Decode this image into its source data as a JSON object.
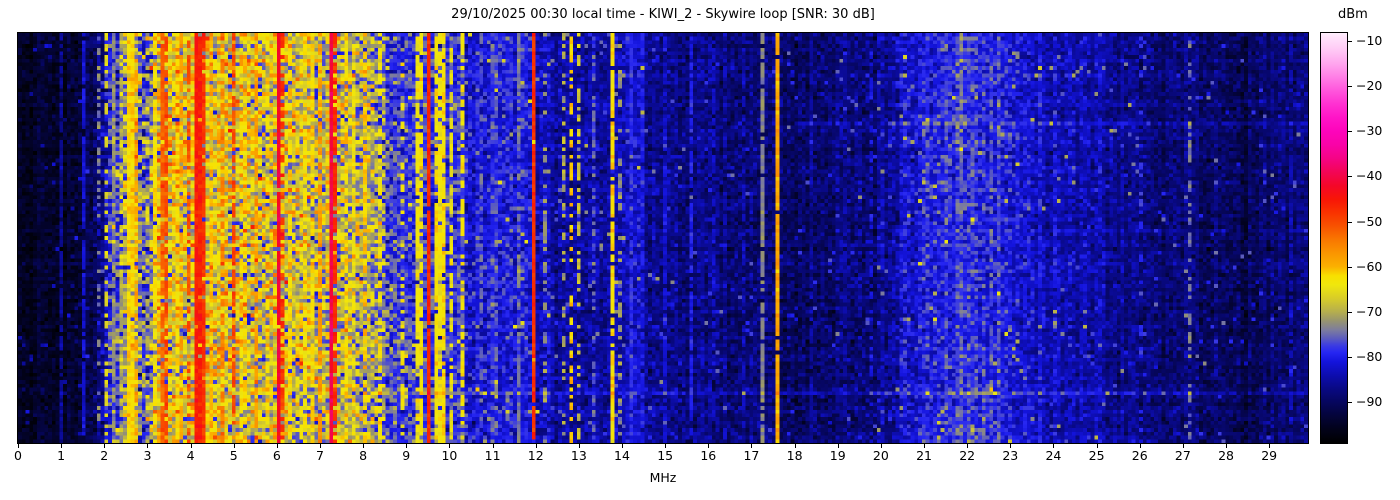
{
  "title": "29/10/2025 00:30 local time - KIWI_2 - Skywire loop [SNR: 30 dB]",
  "axes": {
    "xlabel": "MHz",
    "x_ticks": [
      0,
      1,
      2,
      3,
      4,
      5,
      6,
      7,
      8,
      9,
      10,
      11,
      12,
      13,
      14,
      15,
      16,
      17,
      18,
      19,
      20,
      21,
      22,
      23,
      24,
      25,
      26,
      27,
      28,
      29
    ],
    "colorbar_label": "dBm",
    "colorbar_ticks": [
      -10,
      -20,
      -30,
      -40,
      -50,
      -60,
      -70,
      -80,
      -90
    ]
  },
  "chart_data": {
    "type": "heatmap",
    "title": "29/10/2025 00:30 local time - KIWI_2 - Skywire loop [SNR: 30 dB]",
    "xlabel": "MHz",
    "value_label": "dBm",
    "x_range": [
      0,
      29.9
    ],
    "value_range": [
      -99.1,
      -8.2
    ],
    "cols": 344,
    "rows": 111,
    "grid": false,
    "colormap": [
      [
        -99.1,
        "#000000"
      ],
      [
        -96,
        "#02021a"
      ],
      [
        -93,
        "#04043a"
      ],
      [
        -90,
        "#06065e"
      ],
      [
        -87,
        "#090984"
      ],
      [
        -84,
        "#0d0db0"
      ],
      [
        -81,
        "#1414dd"
      ],
      [
        -79,
        "#2626f2"
      ],
      [
        -77.5,
        "#3b3be2"
      ],
      [
        -76,
        "#5a5ac0"
      ],
      [
        -74,
        "#7d7d9d"
      ],
      [
        -72,
        "#97946f"
      ],
      [
        -70,
        "#b5ae4e"
      ],
      [
        -67,
        "#d8cd28"
      ],
      [
        -64,
        "#f0e70c"
      ],
      [
        -62,
        "#f8e000"
      ],
      [
        -60,
        "#fbb000"
      ],
      [
        -57,
        "#fa9500"
      ],
      [
        -54,
        "#f97700"
      ],
      [
        -51,
        "#f85200"
      ],
      [
        -48,
        "#f93200"
      ],
      [
        -45,
        "#f81507"
      ],
      [
        -42,
        "#f40729"
      ],
      [
        -39,
        "#f30556"
      ],
      [
        -36,
        "#f50485"
      ],
      [
        -33,
        "#f903a7"
      ],
      [
        -30,
        "#fd04bb"
      ],
      [
        -27,
        "#ff14c7"
      ],
      [
        -24,
        "#ff30d1"
      ],
      [
        -21,
        "#ff55dc"
      ],
      [
        -18,
        "#ff7ee6"
      ],
      [
        -15,
        "#ffa5ee"
      ],
      [
        -12,
        "#ffc8f5"
      ],
      [
        -9,
        "#ffe4fb"
      ],
      [
        -8.2,
        "#fff0fd"
      ]
    ],
    "noise_floor": [
      [
        0,
        -95
      ],
      [
        1.4,
        -94
      ],
      [
        1.7,
        -91
      ],
      [
        2.0,
        -84
      ],
      [
        2.15,
        -78
      ],
      [
        2.3,
        -76
      ],
      [
        2.5,
        -70
      ],
      [
        2.78,
        -70
      ],
      [
        2.9,
        -76
      ],
      [
        3.05,
        -74
      ],
      [
        3.15,
        -68
      ],
      [
        3.3,
        -66
      ],
      [
        3.6,
        -67
      ],
      [
        4.0,
        -66
      ],
      [
        4.5,
        -66
      ],
      [
        5.2,
        -67
      ],
      [
        5.8,
        -66
      ],
      [
        6.4,
        -67
      ],
      [
        7.0,
        -68
      ],
      [
        7.6,
        -68
      ],
      [
        8.2,
        -70
      ],
      [
        8.55,
        -76
      ],
      [
        8.8,
        -78
      ],
      [
        10.2,
        -79
      ],
      [
        10.5,
        -81
      ],
      [
        10.9,
        -80
      ],
      [
        11.1,
        -79
      ],
      [
        11.7,
        -80
      ],
      [
        12.1,
        -84
      ],
      [
        12.5,
        -85
      ],
      [
        13.3,
        -86
      ],
      [
        14.0,
        -85
      ],
      [
        14.3,
        -82
      ],
      [
        14.55,
        -86
      ],
      [
        15.5,
        -87
      ],
      [
        16.5,
        -88
      ],
      [
        17.4,
        -88
      ],
      [
        18.2,
        -89
      ],
      [
        19.5,
        -88
      ],
      [
        20.2,
        -86
      ],
      [
        20.6,
        -82
      ],
      [
        21.2,
        -80
      ],
      [
        21.6,
        -78.5
      ],
      [
        22.4,
        -78.5
      ],
      [
        22.9,
        -80
      ],
      [
        23.4,
        -83
      ],
      [
        24.2,
        -84
      ],
      [
        25.2,
        -86
      ],
      [
        26.2,
        -88
      ],
      [
        27.5,
        -89
      ],
      [
        28.6,
        -90
      ],
      [
        29.9,
        -89
      ]
    ],
    "noise_sigma": [
      [
        0,
        1.6
      ],
      [
        1.7,
        2.2
      ],
      [
        2.1,
        5
      ],
      [
        2.5,
        6
      ],
      [
        3.1,
        7
      ],
      [
        5.5,
        7
      ],
      [
        8.4,
        6
      ],
      [
        8.7,
        4
      ],
      [
        10.3,
        3.5
      ],
      [
        12,
        3
      ],
      [
        14,
        2.6
      ],
      [
        18,
        2.5
      ],
      [
        20.5,
        3
      ],
      [
        22.5,
        3
      ],
      [
        24,
        2.6
      ],
      [
        29.9,
        2.2
      ]
    ],
    "speckle": [
      0.025,
      9
    ],
    "carriers_format": [
      "freq_MHz",
      "width_MHz",
      "level_dBm",
      "duty"
    ],
    "carriers": [
      [
        0.98,
        0.05,
        -86,
        0.85
      ],
      [
        1.55,
        0.05,
        -82,
        0.85
      ],
      [
        1.84,
        0.04,
        -73,
        0.3
      ],
      [
        2.02,
        0.04,
        -66,
        0.45
      ],
      [
        2.22,
        0.06,
        -74,
        0.7
      ],
      [
        2.35,
        0.05,
        -72,
        0.6
      ],
      [
        2.63,
        0.2,
        -62,
        0.95
      ],
      [
        2.75,
        0.06,
        -58,
        0.5
      ],
      [
        3.2,
        0.06,
        -63,
        0.8
      ],
      [
        3.33,
        0.07,
        -52,
        0.85
      ],
      [
        3.46,
        0.05,
        -50,
        0.7
      ],
      [
        3.62,
        0.05,
        -71,
        0.85
      ],
      [
        3.73,
        0.05,
        -63,
        0.85
      ],
      [
        3.82,
        0.04,
        -58,
        0.6
      ],
      [
        3.92,
        0.05,
        -51,
        0.55
      ],
      [
        4.17,
        0.1,
        -46,
        0.97
      ],
      [
        4.33,
        0.06,
        -48,
        0.9
      ],
      [
        4.5,
        0.05,
        -61,
        0.75
      ],
      [
        4.65,
        0.04,
        -70,
        0.6
      ],
      [
        4.78,
        0.05,
        -55,
        0.55
      ],
      [
        5.0,
        0.04,
        -50,
        0.6
      ],
      [
        5.15,
        0.05,
        -63,
        0.7
      ],
      [
        5.3,
        0.05,
        -62,
        0.6
      ],
      [
        5.55,
        0.05,
        -58,
        0.7
      ],
      [
        5.75,
        0.04,
        -63,
        0.6
      ],
      [
        6.0,
        0.05,
        -42,
        0.95
      ],
      [
        6.09,
        0.05,
        -48,
        0.55
      ],
      [
        6.3,
        0.05,
        -62,
        0.6
      ],
      [
        6.62,
        0.04,
        -63,
        0.65
      ],
      [
        6.78,
        0.04,
        -62,
        0.6
      ],
      [
        7.0,
        0.05,
        -57,
        0.7
      ],
      [
        7.26,
        0.09,
        -40,
        1
      ],
      [
        7.37,
        0.05,
        -47,
        0.75
      ],
      [
        7.6,
        0.04,
        -62,
        0.55
      ],
      [
        7.82,
        0.04,
        -64,
        0.5
      ],
      [
        8.05,
        0.05,
        -61,
        0.6
      ],
      [
        8.35,
        0.05,
        -63,
        0.55
      ],
      [
        8.92,
        0.05,
        -64,
        0.35
      ],
      [
        9.27,
        0.04,
        -64,
        0.75
      ],
      [
        9.38,
        0.04,
        -63,
        0.75
      ],
      [
        9.54,
        0.05,
        -47,
        0.97
      ],
      [
        9.66,
        0.04,
        -63,
        0.85
      ],
      [
        9.77,
        0.04,
        -64,
        0.8
      ],
      [
        9.89,
        0.04,
        -62,
        0.85
      ],
      [
        10.0,
        0.04,
        -65,
        0.65
      ],
      [
        10.34,
        0.09,
        -63,
        0.55
      ],
      [
        10.7,
        0.04,
        -76,
        0.5
      ],
      [
        11.62,
        0.04,
        -74,
        0.6
      ],
      [
        11.91,
        0.045,
        -48,
        0.95
      ],
      [
        11.98,
        0.04,
        -61,
        0.8
      ],
      [
        12.22,
        0.04,
        -72,
        0.4
      ],
      [
        12.62,
        0.04,
        -70,
        0.45
      ],
      [
        12.85,
        0.05,
        -61,
        0.55
      ],
      [
        13.02,
        0.04,
        -68,
        0.5
      ],
      [
        13.38,
        0.04,
        -75,
        0.5
      ],
      [
        13.74,
        0.045,
        -62,
        0.9
      ],
      [
        13.92,
        0.04,
        -72,
        0.4
      ],
      [
        14.2,
        0.05,
        -78,
        0.8
      ],
      [
        14.45,
        0.05,
        -80,
        0.7
      ],
      [
        15.02,
        0.04,
        -82,
        0.6
      ],
      [
        15.62,
        0.04,
        -80,
        0.75
      ],
      [
        16.12,
        0.04,
        -83,
        0.55
      ],
      [
        16.84,
        0.04,
        -84,
        0.5
      ],
      [
        17.25,
        0.04,
        -73,
        0.8
      ],
      [
        17.62,
        0.045,
        -59,
        0.97
      ],
      [
        18.42,
        0.04,
        -85,
        0.5
      ],
      [
        19.2,
        0.04,
        -85,
        0.4
      ],
      [
        19.8,
        0.04,
        -81,
        0.3
      ],
      [
        26.02,
        0.05,
        -79,
        0.3
      ],
      [
        27.17,
        0.04,
        -74,
        0.45
      ],
      [
        28.3,
        0.04,
        -87,
        0.4
      ],
      [
        29.5,
        0.04,
        -84,
        0.5
      ]
    ],
    "row_events_format": [
      "row_fraction",
      "f_start_MHz",
      "f_end_MHz",
      "boost_dB"
    ],
    "row_events": [
      [
        0.875,
        8.0,
        29.9,
        5
      ],
      [
        0.212,
        18.0,
        29.9,
        4
      ]
    ]
  }
}
